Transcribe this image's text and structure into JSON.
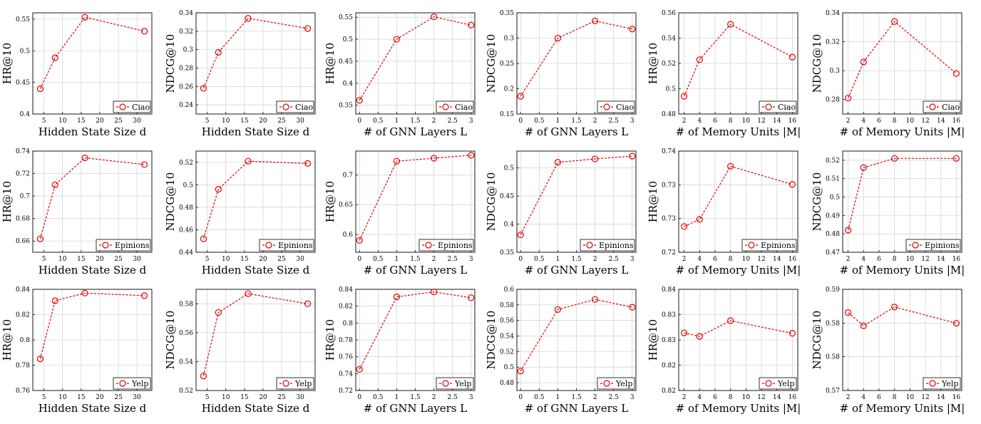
{
  "colors": {
    "series": "#e00000",
    "grid": "#c8c8c8",
    "axis": "#000000"
  },
  "chart_data": [
    {
      "type": "line",
      "legend": "Ciao",
      "xlabel": "Hidden State Size d",
      "ylabel": "HR@10",
      "x": [
        4,
        8,
        16,
        32
      ],
      "values": [
        0.44,
        0.489,
        0.553,
        0.531
      ],
      "xlim": [
        2,
        34
      ],
      "ylim": [
        0.4,
        0.56
      ],
      "xticks": [
        "5",
        "10",
        "15",
        "20",
        "25",
        "30"
      ],
      "xtick_vals": [
        5,
        10,
        15,
        20,
        25,
        30
      ],
      "yticks": [
        "0.4",
        "0.45",
        "0.5",
        "0.55"
      ],
      "ytick_vals": [
        0.4,
        0.45,
        0.5,
        0.55
      ]
    },
    {
      "type": "line",
      "legend": "Ciao",
      "xlabel": "Hidden State Size d",
      "ylabel": "NDCG@10",
      "x": [
        4,
        8,
        16,
        32
      ],
      "values": [
        0.258,
        0.297,
        0.334,
        0.323
      ],
      "xlim": [
        2,
        34
      ],
      "ylim": [
        0.23,
        0.34
      ],
      "xticks": [
        "5",
        "10",
        "15",
        "20",
        "25",
        "30"
      ],
      "xtick_vals": [
        5,
        10,
        15,
        20,
        25,
        30
      ],
      "yticks": [
        "0.24",
        "0.26",
        "0.28",
        "0.3",
        "0.32",
        "0.34"
      ],
      "ytick_vals": [
        0.24,
        0.26,
        0.28,
        0.3,
        0.32,
        0.34
      ]
    },
    {
      "type": "line",
      "legend": "Ciao",
      "xlabel": "# of GNN Layers L",
      "ylabel": "HR@10",
      "x": [
        0,
        1,
        2,
        3
      ],
      "values": [
        0.361,
        0.5,
        0.551,
        0.532
      ],
      "xlim": [
        -0.1,
        3.1
      ],
      "ylim": [
        0.33,
        0.56
      ],
      "xticks": [
        "0",
        "0.5",
        "1",
        "1.5",
        "2",
        "2.5",
        "3"
      ],
      "xtick_vals": [
        0,
        0.5,
        1,
        1.5,
        2,
        2.5,
        3
      ],
      "yticks": [
        "0.35",
        "0.4",
        "0.45",
        "0.5",
        "0.55"
      ],
      "ytick_vals": [
        0.35,
        0.4,
        0.45,
        0.5,
        0.55
      ]
    },
    {
      "type": "line",
      "legend": "Ciao",
      "xlabel": "# of GNN Layers L",
      "ylabel": "NDCG@10",
      "x": [
        0,
        1,
        2,
        3
      ],
      "values": [
        0.185,
        0.3,
        0.334,
        0.318
      ],
      "xlim": [
        -0.1,
        3.1
      ],
      "ylim": [
        0.15,
        0.35
      ],
      "xticks": [
        "0",
        "0.5",
        "1",
        "1.5",
        "2",
        "2.5",
        "3"
      ],
      "xtick_vals": [
        0,
        0.5,
        1,
        1.5,
        2,
        2.5,
        3
      ],
      "yticks": [
        "0.15",
        "0.2",
        "0.25",
        "0.3",
        "0.35"
      ],
      "ytick_vals": [
        0.15,
        0.2,
        0.25,
        0.3,
        0.35
      ]
    },
    {
      "type": "line",
      "legend": "Ciao",
      "xlabel": "# of Memory Units |M|",
      "ylabel": "HR@10",
      "x": [
        2,
        4,
        8,
        16
      ],
      "values": [
        0.494,
        0.523,
        0.551,
        0.525
      ],
      "xlim": [
        1.3,
        16.7
      ],
      "ylim": [
        0.48,
        0.56
      ],
      "xticks": [
        "2",
        "4",
        "6",
        "8",
        "10",
        "12",
        "14",
        "16"
      ],
      "xtick_vals": [
        2,
        4,
        6,
        8,
        10,
        12,
        14,
        16
      ],
      "yticks": [
        "0.48",
        "0.5",
        "0.52",
        "0.54",
        "0.56"
      ],
      "ytick_vals": [
        0.48,
        0.5,
        0.52,
        0.54,
        0.56
      ]
    },
    {
      "type": "line",
      "legend": "Ciao",
      "xlabel": "# of Memory Units |M|",
      "ylabel": "NDCG@10",
      "x": [
        2,
        4,
        8,
        16
      ],
      "values": [
        0.281,
        0.306,
        0.334,
        0.298
      ],
      "xlim": [
        1.3,
        16.7
      ],
      "ylim": [
        0.27,
        0.34
      ],
      "xticks": [
        "2",
        "4",
        "6",
        "8",
        "10",
        "12",
        "14",
        "16"
      ],
      "xtick_vals": [
        2,
        4,
        6,
        8,
        10,
        12,
        14,
        16
      ],
      "yticks": [
        "0.28",
        "0.3",
        "0.32",
        "0.34"
      ],
      "ytick_vals": [
        0.28,
        0.3,
        0.32,
        0.34
      ]
    },
    {
      "type": "line",
      "legend": "Epinions",
      "xlabel": "Hidden State Size d",
      "ylabel": "HR@10",
      "x": [
        4,
        8,
        16,
        32
      ],
      "values": [
        0.662,
        0.71,
        0.734,
        0.728
      ],
      "xlim": [
        2,
        34
      ],
      "ylim": [
        0.65,
        0.74
      ],
      "xticks": [
        "5",
        "10",
        "15",
        "20",
        "25",
        "30"
      ],
      "xtick_vals": [
        5,
        10,
        15,
        20,
        25,
        30
      ],
      "yticks": [
        "0.66",
        "0.68",
        "0.7",
        "0.72",
        "0.74"
      ],
      "ytick_vals": [
        0.66,
        0.68,
        0.7,
        0.72,
        0.74
      ]
    },
    {
      "type": "line",
      "legend": "Epinions",
      "xlabel": "Hidden State Size d",
      "ylabel": "NDCG@10",
      "x": [
        4,
        8,
        16,
        32
      ],
      "values": [
        0.452,
        0.496,
        0.521,
        0.519
      ],
      "xlim": [
        2,
        34
      ],
      "ylim": [
        0.44,
        0.53
      ],
      "xticks": [
        "5",
        "10",
        "15",
        "20",
        "25",
        "30"
      ],
      "xtick_vals": [
        5,
        10,
        15,
        20,
        25,
        30
      ],
      "yticks": [
        "0.44",
        "0.46",
        "0.48",
        "0.5",
        "0.52"
      ],
      "ytick_vals": [
        0.44,
        0.46,
        0.48,
        0.5,
        0.52
      ]
    },
    {
      "type": "line",
      "legend": "Epinions",
      "xlabel": "# of GNN Layers L",
      "ylabel": "HR@10",
      "x": [
        0,
        1,
        2,
        3
      ],
      "values": [
        0.59,
        0.723,
        0.728,
        0.733
      ],
      "xlim": [
        -0.1,
        3.1
      ],
      "ylim": [
        0.57,
        0.74
      ],
      "xticks": [
        "0",
        "0.5",
        "1",
        "1.5",
        "2",
        "2.5",
        "3"
      ],
      "xtick_vals": [
        0,
        0.5,
        1,
        1.5,
        2,
        2.5,
        3
      ],
      "yticks": [
        "0.6",
        "0.65",
        "0.7"
      ],
      "ytick_vals": [
        0.6,
        0.65,
        0.7
      ]
    },
    {
      "type": "line",
      "legend": "Epinions",
      "xlabel": "# of GNN Layers L",
      "ylabel": "NDCG@10",
      "x": [
        0,
        1,
        2,
        3
      ],
      "values": [
        0.381,
        0.51,
        0.516,
        0.521
      ],
      "xlim": [
        -0.1,
        3.1
      ],
      "ylim": [
        0.35,
        0.53
      ],
      "xticks": [
        "0",
        "0.5",
        "1",
        "1.5",
        "2",
        "2.5",
        "3"
      ],
      "xtick_vals": [
        0,
        0.5,
        1,
        1.5,
        2,
        2.5,
        3
      ],
      "yticks": [
        "0.35",
        "0.4",
        "0.45",
        "0.5"
      ],
      "ytick_vals": [
        0.35,
        0.4,
        0.45,
        0.5
      ]
    },
    {
      "type": "line",
      "legend": "Epinions",
      "xlabel": "# of Memory Units |M|",
      "ylabel": "HR@10",
      "x": [
        2,
        4,
        8,
        16
      ],
      "values": [
        0.7251,
        0.7265,
        0.737,
        0.7334
      ],
      "xlim": [
        1.3,
        16.7
      ],
      "ylim": [
        0.72,
        0.74
      ],
      "xticks": [
        "2",
        "4",
        "6",
        "8",
        "10",
        "12",
        "14",
        "16"
      ],
      "xtick_vals": [
        2,
        4,
        6,
        8,
        10,
        12,
        14,
        16
      ],
      "yticks": [
        "0.72",
        "0.73",
        "0.73",
        "0.74"
      ],
      "ytick_vals": [
        0.72,
        0.7267,
        0.7333,
        0.74
      ]
    },
    {
      "type": "line",
      "legend": "Epinions",
      "xlabel": "# of Memory Units |M|",
      "ylabel": "NDCG@10",
      "x": [
        2,
        4,
        8,
        16
      ],
      "values": [
        0.482,
        0.516,
        0.521,
        0.521
      ],
      "xlim": [
        1.3,
        16.7
      ],
      "ylim": [
        0.47,
        0.525
      ],
      "xticks": [
        "2",
        "4",
        "6",
        "8",
        "10",
        "12",
        "14",
        "16"
      ],
      "xtick_vals": [
        2,
        4,
        6,
        8,
        10,
        12,
        14,
        16
      ],
      "yticks": [
        "0.47",
        "0.48",
        "0.49",
        "0.5",
        "0.51",
        "0.52"
      ],
      "ytick_vals": [
        0.47,
        0.48,
        0.49,
        0.5,
        0.51,
        0.52
      ]
    },
    {
      "type": "line",
      "legend": "Yelp",
      "xlabel": "Hidden State Size d",
      "ylabel": "HR@10",
      "x": [
        4,
        8,
        16,
        32
      ],
      "values": [
        0.785,
        0.831,
        0.837,
        0.835
      ],
      "xlim": [
        2,
        34
      ],
      "ylim": [
        0.76,
        0.84
      ],
      "xticks": [
        "5",
        "10",
        "15",
        "20",
        "25",
        "30"
      ],
      "xtick_vals": [
        5,
        10,
        15,
        20,
        25,
        30
      ],
      "yticks": [
        "0.76",
        "0.78",
        "0.8",
        "0.82",
        "0.84"
      ],
      "ytick_vals": [
        0.76,
        0.78,
        0.8,
        0.82,
        0.84
      ]
    },
    {
      "type": "line",
      "legend": "Yelp",
      "xlabel": "Hidden State Size d",
      "ylabel": "NDCG@10",
      "x": [
        4,
        8,
        16,
        32
      ],
      "values": [
        0.53,
        0.574,
        0.587,
        0.58
      ],
      "xlim": [
        2,
        34
      ],
      "ylim": [
        0.52,
        0.59
      ],
      "xticks": [
        "5",
        "10",
        "15",
        "20",
        "25",
        "30"
      ],
      "xtick_vals": [
        5,
        10,
        15,
        20,
        25,
        30
      ],
      "yticks": [
        "0.52",
        "0.54",
        "0.56",
        "0.58"
      ],
      "ytick_vals": [
        0.52,
        0.54,
        0.56,
        0.58
      ]
    },
    {
      "type": "line",
      "legend": "Yelp",
      "xlabel": "# of GNN Layers L",
      "ylabel": "HR@10",
      "x": [
        0,
        1,
        2,
        3
      ],
      "values": [
        0.745,
        0.831,
        0.837,
        0.83
      ],
      "xlim": [
        -0.1,
        3.1
      ],
      "ylim": [
        0.72,
        0.84
      ],
      "xticks": [
        "0",
        "0.5",
        "1",
        "1.5",
        "2",
        "2.5",
        "3"
      ],
      "xtick_vals": [
        0,
        0.5,
        1,
        1.5,
        2,
        2.5,
        3
      ],
      "yticks": [
        "0.72",
        "0.74",
        "0.76",
        "0.78",
        "0.8",
        "0.82",
        "0.84"
      ],
      "ytick_vals": [
        0.72,
        0.74,
        0.76,
        0.78,
        0.8,
        0.82,
        0.84
      ]
    },
    {
      "type": "line",
      "legend": "Yelp",
      "xlabel": "# of GNN Layers L",
      "ylabel": "NDCG@10",
      "x": [
        0,
        1,
        2,
        3
      ],
      "values": [
        0.495,
        0.574,
        0.587,
        0.577
      ],
      "xlim": [
        -0.1,
        3.1
      ],
      "ylim": [
        0.47,
        0.6
      ],
      "xticks": [
        "0",
        "0.5",
        "1",
        "1.5",
        "2",
        "2.5",
        "3"
      ],
      "xtick_vals": [
        0,
        0.5,
        1,
        1.5,
        2,
        2.5,
        3
      ],
      "yticks": [
        "0.48",
        "0.5",
        "0.52",
        "0.54",
        "0.56",
        "0.58",
        "0.6"
      ],
      "ytick_vals": [
        0.48,
        0.5,
        0.52,
        0.54,
        0.56,
        0.58,
        0.6
      ]
    },
    {
      "type": "line",
      "legend": "Yelp",
      "xlabel": "# of Memory Units |M|",
      "ylabel": "HR@10",
      "x": [
        2,
        4,
        8,
        16
      ],
      "values": [
        0.8314,
        0.8307,
        0.8338,
        0.8313
      ],
      "xlim": [
        1.3,
        16.7
      ],
      "ylim": [
        0.82,
        0.84
      ],
      "xticks": [
        "2",
        "4",
        "6",
        "8",
        "10",
        "12",
        "14",
        "16"
      ],
      "xtick_vals": [
        2,
        4,
        6,
        8,
        10,
        12,
        14,
        16
      ],
      "yticks": [
        "0.82",
        "0.82",
        "0.83",
        "0.83",
        "0.84"
      ],
      "ytick_vals": [
        0.82,
        0.825,
        0.83,
        0.835,
        0.84
      ]
    },
    {
      "type": "line",
      "legend": "Yelp",
      "xlabel": "# of Memory Units |M|",
      "ylabel": "NDCG@10",
      "x": [
        2,
        4,
        8,
        16
      ],
      "values": [
        0.5854,
        0.5828,
        0.5865,
        0.5833
      ],
      "xlim": [
        1.3,
        16.7
      ],
      "ylim": [
        0.57,
        0.59
      ],
      "xticks": [
        "2",
        "4",
        "6",
        "8",
        "10",
        "12",
        "14",
        "16"
      ],
      "xtick_vals": [
        2,
        4,
        6,
        8,
        10,
        12,
        14,
        16
      ],
      "yticks": [
        "0.57",
        "0.58",
        "0.58",
        "0.59"
      ],
      "ytick_vals": [
        0.57,
        0.5767,
        0.5833,
        0.59
      ]
    }
  ]
}
